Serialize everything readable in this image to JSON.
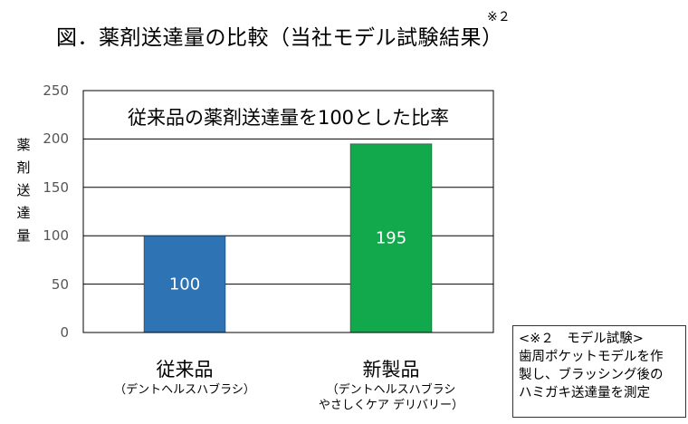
{
  "title": "図．薬剤送達量の比較（当社モデル試験結果）",
  "title_note": "※２",
  "colors": {
    "conventional": "#2E74B5",
    "new": "#12A84C",
    "grid": "#000000"
  },
  "chart_data": {
    "type": "bar",
    "title": "従来品の薬剤送達量を100とした比率",
    "ylabel": "薬剤送達量",
    "xlabel": "",
    "ylim": [
      0,
      250
    ],
    "yticks": [
      0,
      50,
      100,
      150,
      200,
      250
    ],
    "grid": true,
    "categories": [
      "従来品",
      "新製品"
    ],
    "category_subtitles": [
      "（デントヘルスハブラシ）",
      "（デントヘルスハブラシ\nやさしくケア デリバリー）"
    ],
    "values": [
      100,
      195
    ],
    "data_labels": [
      "100",
      "195"
    ]
  },
  "note": {
    "lines": [
      "<※２　モデル試験>",
      "歯周ポケットモデルを作",
      "製し、ブラッシング後の",
      "ハミガキ送達量を測定"
    ]
  }
}
